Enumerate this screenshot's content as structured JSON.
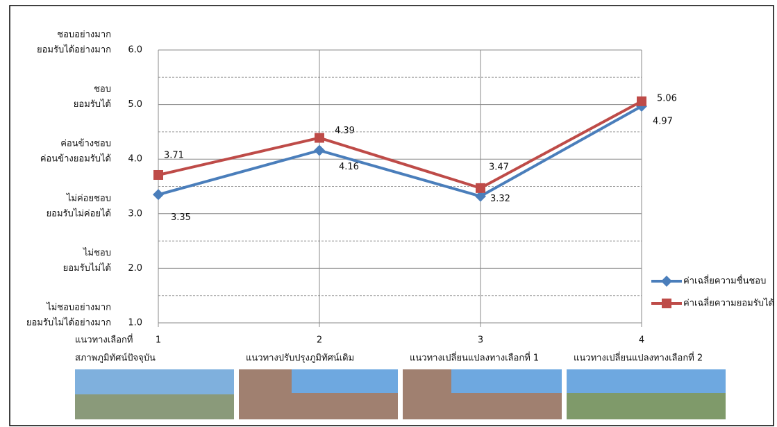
{
  "chart_data": {
    "type": "line",
    "categories": [
      "1",
      "2",
      "3",
      "4"
    ],
    "x_label_prefix": "แนวทางเลือกที่",
    "category_descriptions": [
      "สภาพภูมิทัศน์ปัจจุบัน",
      "แนวทางปรับปรุงภูมิทัศน์เดิม",
      "แนวทางเปลี่ยนแปลงทางเลือกที่ 1",
      "แนวทางเปลี่ยนแปลงทางเลือกที่ 2"
    ],
    "series": [
      {
        "name": "ค่าเฉลี่ยความชื่นชอบ",
        "color": "#4a7ebb",
        "marker": "diamond",
        "values": [
          3.35,
          4.16,
          3.32,
          4.97
        ]
      },
      {
        "name": "ค่าเฉลี่ยความยอมรับได้",
        "color": "#be4b48",
        "marker": "square",
        "values": [
          3.71,
          4.39,
          3.47,
          5.06
        ]
      }
    ],
    "ylim": [
      1,
      6
    ],
    "yticks": [
      {
        "value": 1,
        "label": "1.0"
      },
      {
        "value": 2,
        "label": "2.0"
      },
      {
        "value": 3,
        "label": "3.0"
      },
      {
        "value": 4,
        "label": "4.0"
      },
      {
        "value": 5,
        "label": "5.0"
      },
      {
        "value": 6,
        "label": "6.0"
      }
    ],
    "minor_yticks": [
      1.5,
      2.5,
      3.5,
      4.5,
      5.5
    ],
    "y_level_labels": [
      [
        "ไม่ชอบอย่างมาก",
        "ยอมรับไม่ได้อย่างมาก"
      ],
      [
        "ไม่ชอบ",
        "ยอมรับไม่ได้"
      ],
      [
        "ไม่ค่อยชอบ",
        "ยอมรับไม่ค่อยได้"
      ],
      [
        "ค่อนข้างชอบ",
        "ค่อนข้างยอมรับได้"
      ],
      [
        "ชอบ",
        "ยอมรับได้"
      ],
      [
        "ชอบอย่างมาก",
        "ยอมรับได้อย่างมาก"
      ]
    ],
    "grid": true,
    "legend": "right"
  }
}
